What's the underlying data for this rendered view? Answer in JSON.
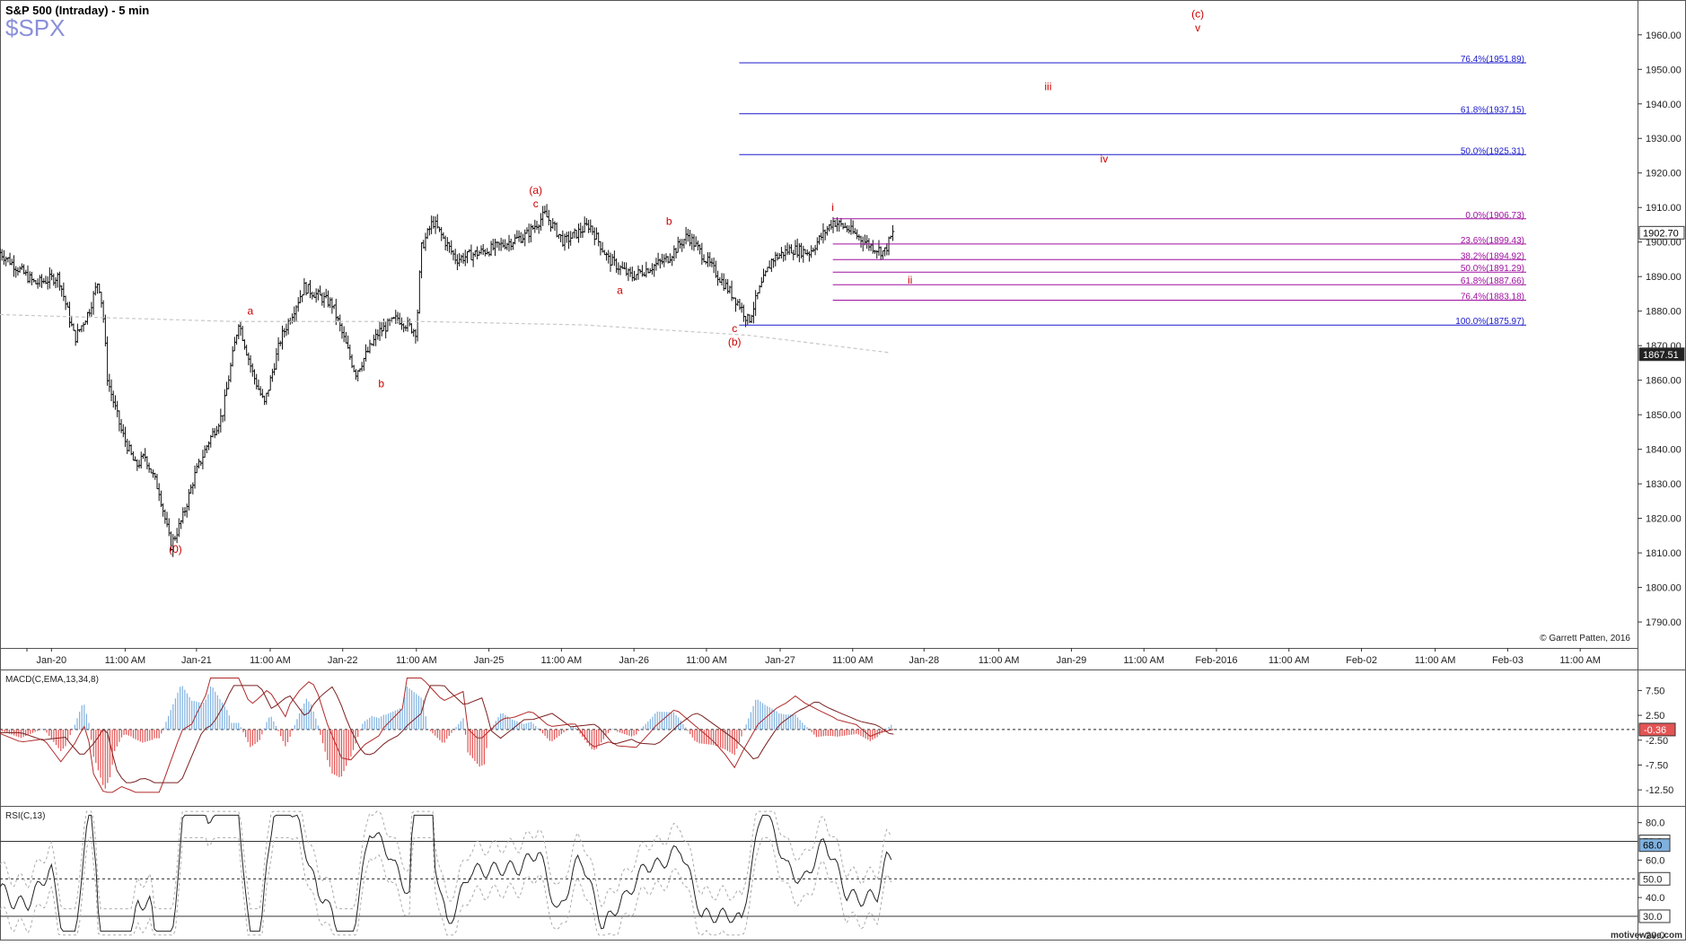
{
  "header": {
    "title": "S&P 500 (Intraday) - 5 min",
    "symbol": "$SPX"
  },
  "copyright": "© Garrett Patten, 2016",
  "watermark": "motivewave.com",
  "colors": {
    "bar": "#111111",
    "wave_label": "#cc0000",
    "fib_blue": "#1a1acc",
    "fib_magenta": "#a010a0",
    "ma_dashed": "#c8c8c8",
    "macd_pos": "#7fb1df",
    "macd_neg": "#e35454",
    "macd_line": "#b02a2a",
    "rsi_line": "#222222",
    "rsi_band": "#aaaaaa"
  },
  "time_axis": [
    "Jan-20",
    "11:00 AM",
    "Jan-21",
    "11:00 AM",
    "Jan-22",
    "11:00 AM",
    "Jan-25",
    "11:00 AM",
    "Jan-26",
    "11:00 AM",
    "Jan-27",
    "11:00 AM",
    "Jan-28",
    "11:00 AM",
    "Jan-29",
    "11:00 AM",
    "Feb-2016",
    "11:00 AM",
    "Feb-02",
    "11:00 AM",
    "Feb-03",
    "11:00 AM"
  ],
  "chart_data": [
    {
      "type": "line",
      "panel": "price",
      "title": "S&P 500 (Intraday) - 5 min",
      "ylim": [
        1783,
        1968
      ],
      "y_ticks": [
        1790,
        1800,
        1810,
        1820,
        1830,
        1840,
        1850,
        1860,
        1870,
        1880,
        1890,
        1900,
        1910,
        1920,
        1930,
        1940,
        1950,
        1960
      ],
      "y_tick_labels": [
        "1790.00",
        "1800.00",
        "1810.00",
        "1820.00",
        "1830.00",
        "1840.00",
        "1850.00",
        "1860.00",
        "1870.00",
        "1880.00",
        "1890.00",
        "1900.00",
        "1910.00",
        "1920.00",
        "1930.00",
        "1940.00",
        "1950.00",
        "1960.00"
      ],
      "price_path": [
        [
          0.0,
          1897
        ],
        [
          1.5,
          1888
        ],
        [
          2.5,
          1890
        ],
        [
          3.2,
          1872
        ],
        [
          3.8,
          1880
        ],
        [
          4.2,
          1889
        ],
        [
          4.4,
          1880
        ],
        [
          4.6,
          1860
        ],
        [
          5.2,
          1845
        ],
        [
          5.8,
          1835
        ],
        [
          6.2,
          1838
        ],
        [
          6.8,
          1828
        ],
        [
          7.3,
          1812
        ],
        [
          7.8,
          1820
        ],
        [
          8.3,
          1832
        ],
        [
          8.9,
          1842
        ],
        [
          9.5,
          1850
        ],
        [
          10.2,
          1877
        ],
        [
          10.8,
          1862
        ],
        [
          11.3,
          1853
        ],
        [
          12.0,
          1872
        ],
        [
          13.0,
          1887
        ],
        [
          14.2,
          1882
        ],
        [
          15.2,
          1862
        ],
        [
          16.2,
          1874
        ],
        [
          17.0,
          1878
        ],
        [
          17.8,
          1874
        ],
        [
          18.0,
          1898
        ],
        [
          18.5,
          1906
        ],
        [
          19.5,
          1895
        ],
        [
          21.0,
          1898
        ],
        [
          22.5,
          1902
        ],
        [
          23.3,
          1908
        ],
        [
          24.1,
          1900
        ],
        [
          25.2,
          1905
        ],
        [
          26.0,
          1895
        ],
        [
          27.0,
          1890
        ],
        [
          28.5,
          1895
        ],
        [
          29.4,
          1902
        ],
        [
          30.5,
          1892
        ],
        [
          31.6,
          1882
        ],
        [
          32.0,
          1877
        ],
        [
          32.4,
          1885
        ],
        [
          33.0,
          1895
        ],
        [
          33.8,
          1898
        ],
        [
          34.6,
          1897
        ],
        [
          35.6,
          1906
        ],
        [
          36.2,
          1904
        ],
        [
          37.2,
          1899
        ],
        [
          37.8,
          1897
        ],
        [
          38.2,
          1903
        ]
      ],
      "moving_average": [
        [
          0,
          1879
        ],
        [
          10,
          1877
        ],
        [
          18,
          1877
        ],
        [
          25,
          1876
        ],
        [
          32,
          1873
        ],
        [
          38,
          1868
        ]
      ],
      "last_price_label": "1902.70",
      "reference_price_label": "1867.51",
      "fib_levels_blue": [
        {
          "label": "76.4%(1951.89)",
          "value": 1951.89
        },
        {
          "label": "61.8%(1937.15)",
          "value": 1937.15
        },
        {
          "label": "50.0%(1925.31)",
          "value": 1925.31
        },
        {
          "label": "100.0%(1875.97)",
          "value": 1875.97
        }
      ],
      "fib_levels_magenta": [
        {
          "label": "0.0%(1906.73)",
          "value": 1906.73
        },
        {
          "label": "23.6%(1899.43)",
          "value": 1899.43
        },
        {
          "label": "38.2%(1894.92)",
          "value": 1894.92
        },
        {
          "label": "50.0%(1891.29)",
          "value": 1891.29
        },
        {
          "label": "61.8%(1887.66)",
          "value": 1887.66
        },
        {
          "label": "76.4%(1883.18)",
          "value": 1883.18
        }
      ],
      "wave_labels": [
        {
          "text": "(0)",
          "x": 7.5,
          "y": 1810
        },
        {
          "text": "a",
          "x": 10.7,
          "y": 1879
        },
        {
          "text": "b",
          "x": 16.3,
          "y": 1858
        },
        {
          "text": "(a)",
          "x": 22.9,
          "y": 1914
        },
        {
          "text": "c",
          "x": 22.9,
          "y": 1910
        },
        {
          "text": "b",
          "x": 28.6,
          "y": 1905
        },
        {
          "text": "a",
          "x": 26.5,
          "y": 1885
        },
        {
          "text": "c",
          "x": 31.4,
          "y": 1874
        },
        {
          "text": "(b)",
          "x": 31.4,
          "y": 1870
        },
        {
          "text": "i",
          "x": 35.6,
          "y": 1909
        },
        {
          "text": "ii",
          "x": 38.9,
          "y": 1888
        },
        {
          "text": "iii",
          "x": 44.8,
          "y": 1944
        },
        {
          "text": "iv",
          "x": 47.2,
          "y": 1923
        },
        {
          "text": "(c)",
          "x": 51.2,
          "y": 1965
        },
        {
          "text": "v",
          "x": 51.2,
          "y": 1961
        }
      ]
    },
    {
      "type": "bar",
      "panel": "macd",
      "title": "MACD(C,EMA,13,34,8)",
      "ylim": [
        -15,
        11
      ],
      "y_ticks": [
        7.5,
        2.5,
        -2.5,
        -7.5,
        -12.5
      ],
      "y_tick_labels": [
        "7.50",
        "2.50",
        "-2.50",
        "-7.50",
        "-12.50"
      ],
      "last_value_label": "-0.36",
      "zero_line": -0.36
    },
    {
      "type": "line",
      "panel": "rsi",
      "title": "RSI(C,13)",
      "ylim": [
        18,
        88
      ],
      "y_ticks": [
        80,
        60,
        40,
        20
      ],
      "y_tick_labels": [
        "80.0",
        "60.0",
        "40.0",
        "20.0"
      ],
      "bands": [
        {
          "value": 70,
          "label": "70.0"
        },
        {
          "value": 30,
          "label": "30.0"
        }
      ],
      "midline": 50,
      "midline_label": "50.0",
      "last_value_label": "68.0"
    }
  ]
}
